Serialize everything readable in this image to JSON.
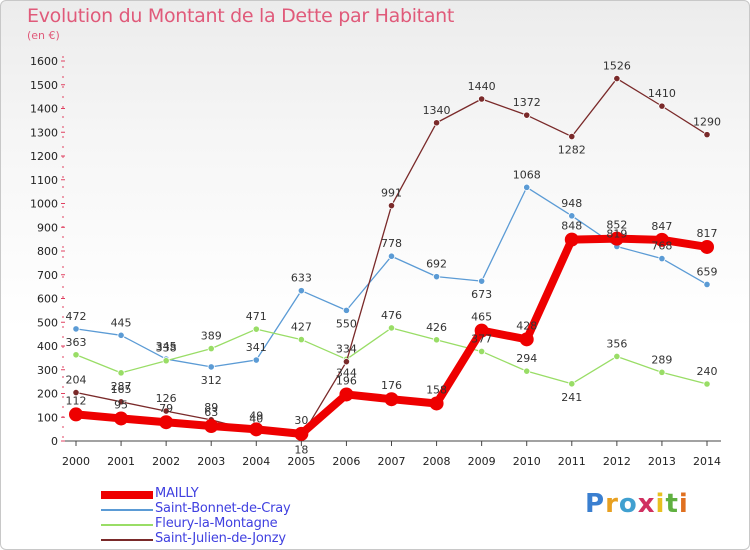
{
  "title": "Evolution du Montant de la Dette par Habitant",
  "unit": "(en €)",
  "logo": {
    "text": "Proxiti"
  },
  "chart_data": {
    "type": "line",
    "title": "Evolution du Montant de la Dette par Habitant",
    "subtitle": "(en €)",
    "x": [
      "2000",
      "2001",
      "2002",
      "2003",
      "2004",
      "2005",
      "2006",
      "2007",
      "2008",
      "2009",
      "2010",
      "2011",
      "2012",
      "2013",
      "2014"
    ],
    "ylim": [
      0,
      1600
    ],
    "yticks": [
      0,
      100,
      200,
      300,
      400,
      500,
      600,
      700,
      800,
      900,
      1000,
      1100,
      1200,
      1300,
      1400,
      1500,
      1600
    ],
    "grid": false,
    "legend": "bottom-left",
    "series": [
      {
        "name": "MAILLY",
        "color": "#ee0000",
        "values": [
          112,
          95,
          79,
          63,
          49,
          30,
          196,
          176,
          158,
          465,
          428,
          848,
          852,
          847,
          817
        ]
      },
      {
        "name": "Saint-Bonnet-de-Cray",
        "color": "#5b9bd5",
        "values": [
          472,
          445,
          345,
          312,
          341,
          633,
          550,
          778,
          692,
          673,
          1068,
          948,
          819,
          768,
          659
        ]
      },
      {
        "name": "Fleury-la-Montagne",
        "color": "#99dd66",
        "values": [
          363,
          287,
          338,
          389,
          471,
          427,
          344,
          476,
          426,
          377,
          294,
          241,
          356,
          289,
          240
        ]
      },
      {
        "name": "Saint-Julien-de-Jonzy",
        "color": "#7a2a2a",
        "values": [
          204,
          165,
          126,
          89,
          40,
          18,
          334,
          991,
          1340,
          1440,
          1372,
          1282,
          1526,
          1410,
          1290
        ]
      }
    ]
  }
}
